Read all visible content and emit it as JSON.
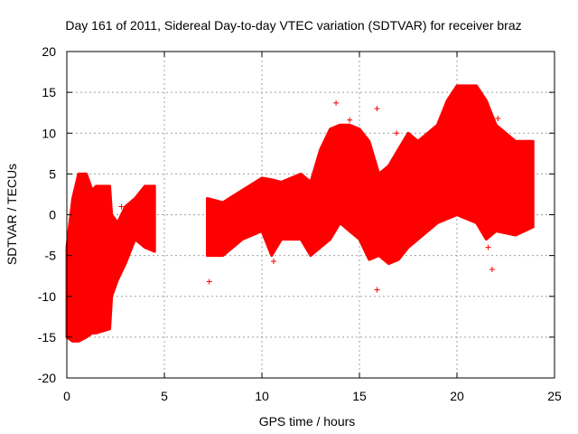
{
  "chart_data": {
    "type": "scatter",
    "title": "Day 161 of 2011, Sidereal Day-to-day VTEC variation (SDTVAR) for receiver braz",
    "xlabel": "GPS time / hours",
    "ylabel": "SDTVAR / TECUs",
    "xlim": [
      0,
      25
    ],
    "ylim": [
      -20,
      20
    ],
    "xticks": [
      0,
      5,
      10,
      15,
      20,
      25
    ],
    "yticks": [
      -20,
      -15,
      -10,
      -5,
      0,
      5,
      10,
      15,
      20
    ],
    "grid": true,
    "marker": "+",
    "color": "#ff0000",
    "dense_bands": [
      {
        "x": [
          0,
          0.3,
          0.6,
          1.0,
          1.3,
          1.5,
          2.2,
          2.3,
          2.6,
          3.0,
          3.5,
          4.0,
          4.5
        ],
        "upper": [
          -4,
          2,
          5,
          5,
          3,
          3.5,
          3.5,
          0,
          -1,
          1,
          2,
          3.5,
          3.5
        ],
        "lower": [
          -15,
          -15.5,
          -15.5,
          -15,
          -14.5,
          -14.5,
          -14,
          -10,
          -8,
          -6,
          -3,
          -4,
          -4.5
        ]
      },
      {
        "x": [
          7.2,
          8,
          9,
          10,
          10.5,
          11,
          12,
          12.5,
          13,
          13.5,
          14,
          14.5,
          15,
          15.5,
          16,
          16.5,
          17,
          17.5,
          18,
          19,
          19.5,
          20,
          21,
          21.5,
          22,
          23,
          23.9
        ],
        "upper": [
          2,
          1.5,
          3,
          4.5,
          4.3,
          4,
          5,
          4,
          8,
          10.5,
          11,
          11,
          10.5,
          9,
          5,
          6,
          8,
          10,
          9,
          11,
          14,
          15.8,
          15.8,
          14,
          11,
          9,
          9
        ],
        "lower": [
          -5,
          -5,
          -3,
          -2,
          -5,
          -3,
          -3,
          -5,
          -4,
          -3,
          -1,
          -2,
          -3,
          -5.5,
          -5,
          -6,
          -5.5,
          -4,
          -3,
          -1,
          -0.5,
          0,
          -1,
          -3,
          -2,
          -2.5,
          -1.5
        ]
      }
    ],
    "outliers": [
      [
        2.8,
        1
      ],
      [
        7.3,
        -8.2
      ],
      [
        10.6,
        -5.7
      ],
      [
        13.8,
        13.7
      ],
      [
        14.5,
        11.6
      ],
      [
        15.9,
        13
      ],
      [
        15.9,
        -9.2
      ],
      [
        16.9,
        10
      ],
      [
        21.6,
        -4
      ],
      [
        22.1,
        11.8
      ],
      [
        21.8,
        -6.7
      ]
    ]
  }
}
